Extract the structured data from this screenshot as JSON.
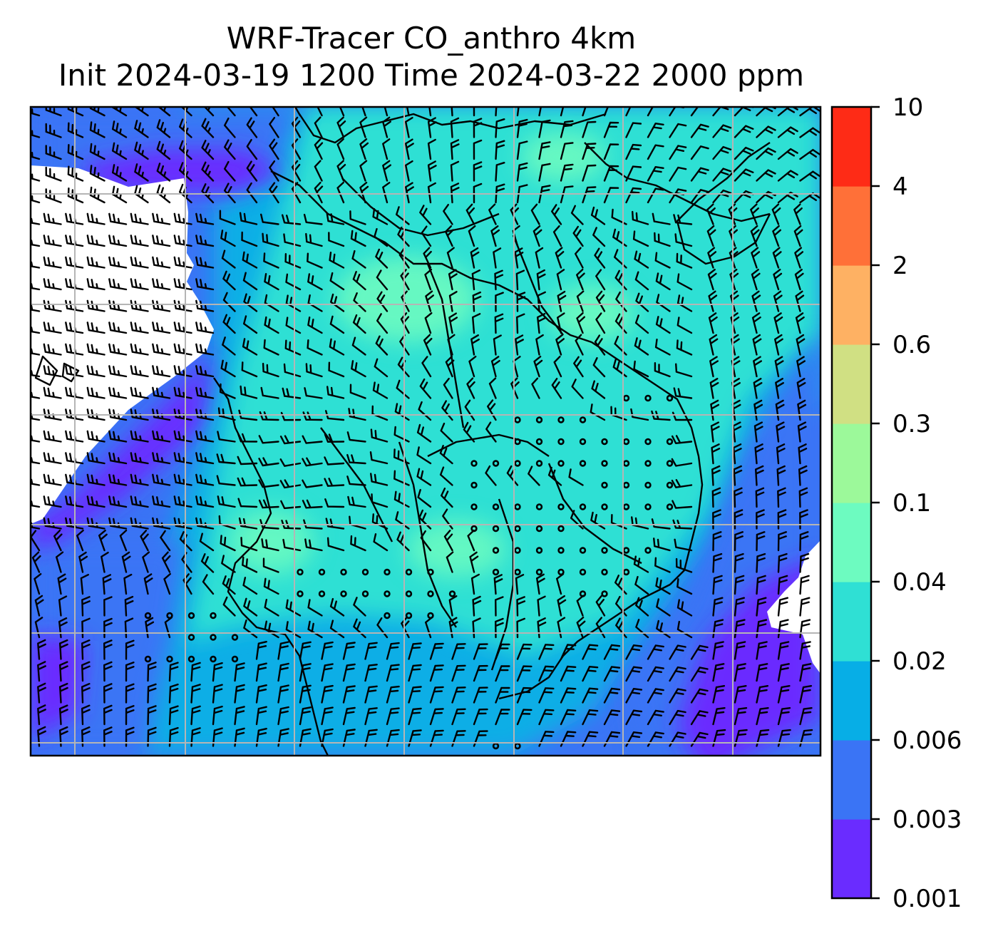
{
  "figure": {
    "title_line1": "WRF-Tracer CO_anthro 4km",
    "title_line2": "Init 2024-03-19 1200 Time 2024-03-22 2000 ppm"
  },
  "colorbar": {
    "levels": [
      "0.001",
      "0.003",
      "0.006",
      "0.02",
      "0.04",
      "0.1",
      "0.3",
      "0.6",
      "2",
      "4",
      "10"
    ],
    "colors": [
      "#6a2cff",
      "#3a74f5",
      "#07aee6",
      "#2fe0d4",
      "#6dfbc0",
      "#9cf99a",
      "#d0e083",
      "#feb163",
      "#ff7038",
      "#fe2b16"
    ]
  },
  "map": {
    "missing_color": "#ffffff",
    "grid_color": "#b5b5b5",
    "coastline_color": "#000000",
    "barb_color": "#000000",
    "calm_marker": "circle"
  }
}
